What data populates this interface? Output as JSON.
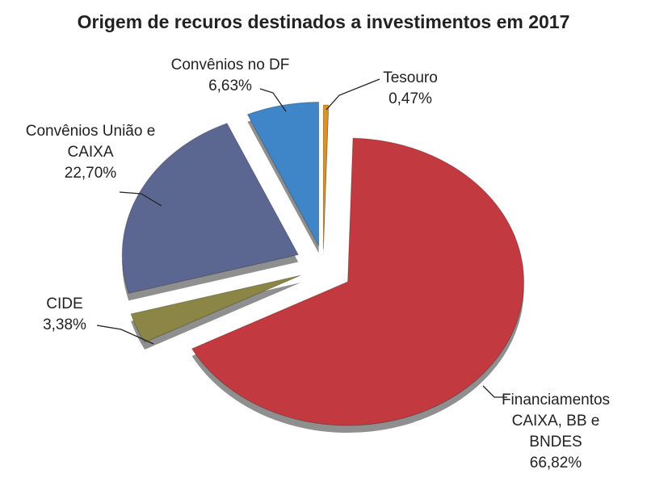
{
  "chart_data": {
    "type": "pie",
    "title": "Origem de recuros destinados a investimentos em 2017",
    "categories": [
      "Tesouro",
      "Financiamentos CAIXA, BB e BNDES",
      "CIDE",
      "Convênios União e CAIXA",
      "Convênios no DF"
    ],
    "values": [
      0.47,
      66.82,
      3.38,
      22.7,
      6.63
    ],
    "value_labels": [
      "0,47%",
      "66,82%",
      "3,38%",
      "22,70%",
      "6,63%"
    ],
    "colors": [
      "#e0901f",
      "#c23a3f",
      "#8b8645",
      "#5b6791",
      "#3f86c8"
    ]
  }
}
